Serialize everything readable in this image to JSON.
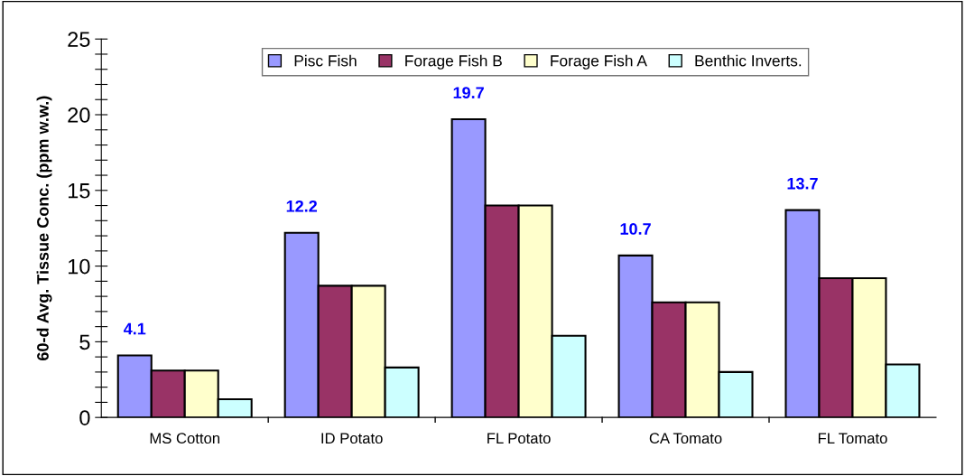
{
  "chart_data": {
    "type": "bar",
    "ylabel": "60-d Avg. Tissue Conc. (ppm w.w.)",
    "categories": [
      "MS Cotton",
      "ID Potato",
      "FL Potato",
      "CA Tomato",
      "FL Tomato"
    ],
    "series": [
      {
        "name": "Pisc Fish",
        "color": "#9999ff",
        "values": [
          4.1,
          12.2,
          19.7,
          10.7,
          13.7
        ],
        "value_labels": [
          "4.1",
          "12.2",
          "19.7",
          "10.7",
          "13.7"
        ]
      },
      {
        "name": "Forage Fish B",
        "color": "#993366",
        "values": [
          3.1,
          8.7,
          14.0,
          7.6,
          9.2
        ]
      },
      {
        "name": "Forage Fish A",
        "color": "#ffffcc",
        "values": [
          3.1,
          8.7,
          14.0,
          7.6,
          9.2
        ]
      },
      {
        "name": "Benthic Inverts.",
        "color": "#ccffff",
        "values": [
          1.2,
          3.3,
          5.4,
          3.0,
          3.5
        ]
      }
    ],
    "ylim": [
      0,
      25
    ],
    "yticks": [
      0,
      {
        "value": 1,
        "label": null
      },
      {
        "value": 2,
        "label": null
      },
      {
        "value": 3,
        "label": null
      },
      {
        "value": 4,
        "label": null
      },
      5,
      {
        "value": 6,
        "label": null
      },
      {
        "value": 7,
        "label": null
      },
      {
        "value": 8,
        "label": null
      },
      {
        "value": 9,
        "label": null
      },
      10,
      {
        "value": 11,
        "label": null
      },
      {
        "value": 12,
        "label": null
      },
      {
        "value": 13,
        "label": null
      },
      {
        "value": 14,
        "label": null
      },
      15,
      {
        "value": 16,
        "label": null
      },
      {
        "value": 17,
        "label": null
      },
      {
        "value": 18,
        "label": null
      },
      {
        "value": 19,
        "label": null
      },
      20,
      {
        "value": 21,
        "label": null
      },
      {
        "value": 22,
        "label": null
      },
      {
        "value": 23,
        "label": null
      },
      {
        "value": 24,
        "label": null
      },
      25
    ],
    "grid": false,
    "legend": "top"
  }
}
